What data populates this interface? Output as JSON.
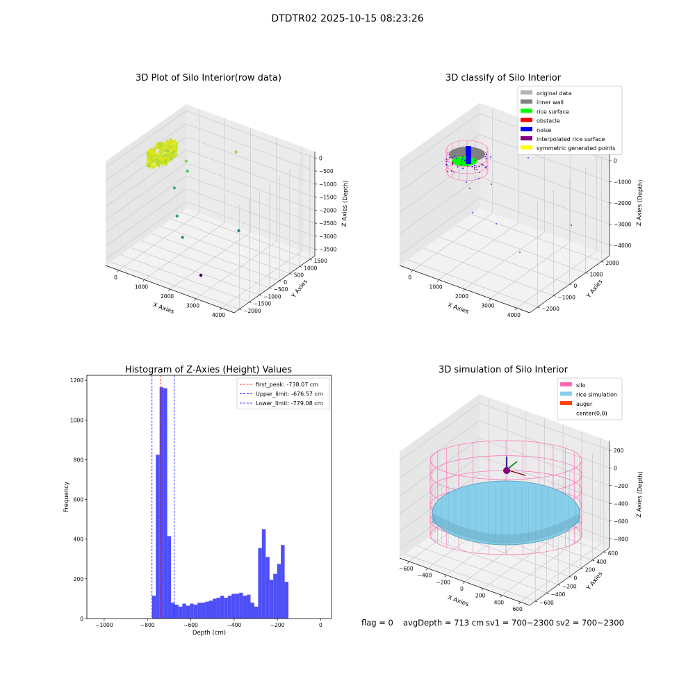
{
  "suptitle": "DTDTR02 2025-10-15 08:23:26",
  "status_line": {
    "flag": "flag = 0",
    "avg_depth": "avgDepth = 713 cm",
    "sv1": "sv1 = 700~2300",
    "sv2": "sv2 = 700~2300"
  },
  "chart_data": [
    {
      "type": "scatter",
      "projection": "3d",
      "title": "3D Plot of Silo Interior(row data)",
      "xlabel": "X Axies",
      "ylabel": "Y Axies",
      "zlabel": "Z Axies (Depth)",
      "x_ticks": [
        "0",
        "1000",
        "2000",
        "3000",
        "4000"
      ],
      "y_ticks": [
        "1500",
        "1000",
        "500",
        "0",
        "−500",
        "−1000",
        "−1500",
        "−2000"
      ],
      "z_ticks": [
        "0",
        "−500",
        "−1000",
        "−1500",
        "−2000",
        "−2500",
        "−3000",
        "−3500"
      ],
      "colormap": "viridis",
      "grid": true,
      "cluster": {
        "x_range": [
          -300,
          300
        ],
        "y_range": [
          -600,
          600
        ],
        "z_range": [
          -800,
          -400
        ],
        "color": "#d9e51e"
      },
      "outliers": [
        {
          "x": 200,
          "y": 900,
          "z": -1300
        },
        {
          "x": 400,
          "y": 700,
          "z": -1500
        },
        {
          "x": 300,
          "y": 200,
          "z": -1900
        },
        {
          "x": 700,
          "y": -200,
          "z": -2600
        },
        {
          "x": 1200,
          "y": -600,
          "z": -3000
        },
        {
          "x": 2500,
          "y": 400,
          "z": -2800
        },
        {
          "x": 2400,
          "y": -1300,
          "z": -3600
        },
        {
          "x": 1800,
          "y": 1200,
          "z": -500
        }
      ]
    },
    {
      "type": "scatter",
      "projection": "3d",
      "title": "3D classify of Silo Interior",
      "xlabel": "X Axies",
      "ylabel": "Y Axies",
      "zlabel": "Z Axies (Depth)",
      "x_ticks": [
        "0",
        "1000",
        "2000",
        "3000",
        "4000"
      ],
      "y_ticks": [
        "2000",
        "1000",
        "0",
        "−1000",
        "−2000"
      ],
      "z_ticks": [
        "0",
        "−1000",
        "−2000",
        "−3000",
        "−4000"
      ],
      "grid": true,
      "legend_position": "top-right",
      "legend": [
        {
          "label": "original data",
          "color": "#b3b3b3"
        },
        {
          "label": "inner wall",
          "color": "#808080"
        },
        {
          "label": "rice surface",
          "color": "#00ff00"
        },
        {
          "label": "obstacle",
          "color": "#ff0000"
        },
        {
          "label": "noise",
          "color": "#0000ff"
        },
        {
          "label": "interpolated rice surface",
          "color": "#800080"
        },
        {
          "label": "symmetric generated points",
          "color": "#ffff00"
        }
      ]
    },
    {
      "type": "bar",
      "title": "Histogram of Z-Axies (Height) Values",
      "xlabel": "Depth (cm)",
      "ylabel": "Frequency",
      "xlim": [
        -1080,
        50
      ],
      "ylim": [
        0,
        1225
      ],
      "x_ticks": [
        -1000,
        -800,
        -600,
        -400,
        -200,
        0
      ],
      "x_tick_labels": [
        "−1000",
        "−800",
        "−600",
        "−400",
        "−200",
        "0"
      ],
      "y_ticks": [
        0,
        200,
        400,
        600,
        800,
        1000,
        1200
      ],
      "bar_color": "#4f4ff7",
      "bin_start": -779,
      "bin_width": 17.5,
      "values": [
        115,
        825,
        1165,
        1160,
        415,
        80,
        70,
        60,
        75,
        65,
        75,
        70,
        80,
        80,
        85,
        90,
        100,
        105,
        115,
        105,
        115,
        125,
        125,
        130,
        115,
        120,
        80,
        60,
        355,
        450,
        310,
        195,
        225,
        275,
        370,
        185
      ],
      "reference_lines": [
        {
          "label": "first_peak: -738.07 cm",
          "value": -738.07,
          "color": "#ff0000"
        },
        {
          "label": "Upper_limit: -676.57 cm",
          "value": -676.57,
          "color": "#0000ff"
        },
        {
          "label": "Lower_limit: -779.08 cm",
          "value": -779.08,
          "color": "#0000ff"
        }
      ],
      "legend_position": "top-right",
      "grid": false
    },
    {
      "type": "surface",
      "projection": "3d",
      "title": "3D simulation of Silo Interior",
      "xlabel": "X Axies",
      "ylabel": "Y Axies",
      "zlabel": "Z Axies (Depth)",
      "x_ticks": [
        "−600",
        "−400",
        "−200",
        "0",
        "200",
        "400",
        "600"
      ],
      "y_ticks": [
        "600",
        "400",
        "200",
        "0",
        "−200",
        "−400",
        "−600"
      ],
      "z_ticks": [
        "200",
        "0",
        "−200",
        "−400",
        "−600",
        "−800"
      ],
      "grid": true,
      "legend_position": "top-right",
      "legend": [
        {
          "label": "silo",
          "color": "#ff69b4"
        },
        {
          "label": "rice simulation",
          "color": "#87ceeb"
        },
        {
          "label": "auger",
          "color": "#ff4500"
        },
        {
          "label": "center(0,0)",
          "color": ""
        }
      ]
    }
  ]
}
